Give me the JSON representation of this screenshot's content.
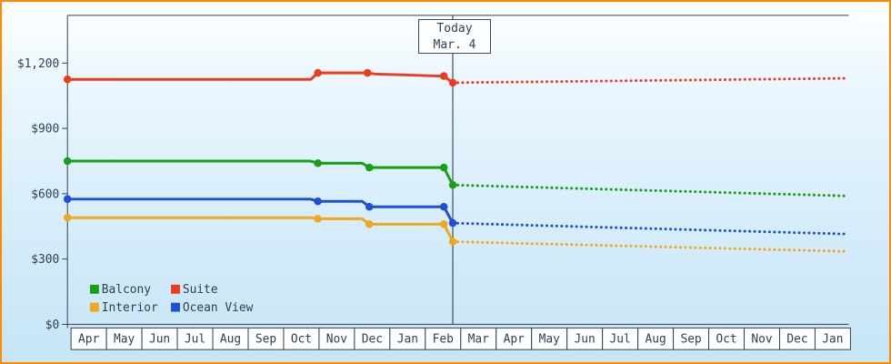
{
  "colors": {
    "border": "#ff8a00",
    "ink": "#2e4156",
    "today_line": "#3a4d63",
    "month_box_fill": "#ffffff",
    "bg_top": "#ffffff",
    "bg_bottom": "#c6e5f7"
  },
  "chart_data": {
    "type": "line",
    "title": "",
    "currency_symbol": "$",
    "grid": false,
    "legend_position": "bottom-left",
    "ylim": [
      0,
      1420
    ],
    "x_range_months": 22,
    "today": {
      "line1": "Today",
      "line2": "Mar. 4",
      "x_month": 10.85
    },
    "y_ticks": [
      {
        "value": 0,
        "label": "$0"
      },
      {
        "value": 300,
        "label": "$300"
      },
      {
        "value": 600,
        "label": "$600"
      },
      {
        "value": 900,
        "label": "$900"
      },
      {
        "value": 1200,
        "label": "$1,200"
      }
    ],
    "x_months": [
      "Apr",
      "May",
      "Jun",
      "Jul",
      "Aug",
      "Sep",
      "Oct",
      "Nov",
      "Dec",
      "Jan",
      "Feb",
      "Mar",
      "Apr",
      "May",
      "Jun",
      "Jul",
      "Aug",
      "Sep",
      "Oct",
      "Nov",
      "Dec",
      "Jan"
    ],
    "series": [
      {
        "name": "Interior",
        "color": "#f0a81f",
        "solid": [
          [
            0,
            490
          ],
          [
            6.85,
            490
          ],
          [
            7.05,
            485
          ],
          [
            8.3,
            485
          ],
          [
            8.5,
            460
          ],
          [
            10.6,
            460
          ],
          [
            10.85,
            380
          ]
        ],
        "markers": [
          [
            0,
            490
          ],
          [
            7.05,
            485
          ],
          [
            8.5,
            460
          ],
          [
            10.6,
            460
          ],
          [
            10.85,
            380
          ]
        ],
        "forecast": [
          [
            10.85,
            380
          ],
          [
            21.9,
            335
          ]
        ]
      },
      {
        "name": "Ocean View",
        "color": "#1e4fd8",
        "solid": [
          [
            0,
            575
          ],
          [
            6.85,
            575
          ],
          [
            7.05,
            565
          ],
          [
            8.3,
            565
          ],
          [
            8.5,
            540
          ],
          [
            10.6,
            540
          ],
          [
            10.85,
            465
          ]
        ],
        "markers": [
          [
            0,
            575
          ],
          [
            7.05,
            565
          ],
          [
            8.5,
            540
          ],
          [
            10.6,
            540
          ],
          [
            10.85,
            465
          ]
        ],
        "forecast": [
          [
            10.85,
            465
          ],
          [
            21.9,
            415
          ]
        ]
      },
      {
        "name": "Balcony",
        "color": "#15a015",
        "solid": [
          [
            0,
            750
          ],
          [
            6.85,
            750
          ],
          [
            7.05,
            740
          ],
          [
            8.3,
            740
          ],
          [
            8.5,
            720
          ],
          [
            10.6,
            720
          ],
          [
            10.85,
            640
          ]
        ],
        "markers": [
          [
            0,
            750
          ],
          [
            7.05,
            740
          ],
          [
            8.5,
            720
          ],
          [
            10.6,
            720
          ],
          [
            10.85,
            640
          ]
        ],
        "forecast": [
          [
            10.85,
            640
          ],
          [
            21.9,
            590
          ]
        ]
      },
      {
        "name": "Suite",
        "color": "#ee3b1e",
        "solid": [
          [
            0,
            1125
          ],
          [
            6.85,
            1125
          ],
          [
            7.05,
            1155
          ],
          [
            8.45,
            1155
          ],
          [
            8.65,
            1150
          ],
          [
            10.6,
            1140
          ],
          [
            10.85,
            1110
          ]
        ],
        "markers": [
          [
            0,
            1125
          ],
          [
            7.05,
            1155
          ],
          [
            8.45,
            1155
          ],
          [
            10.6,
            1140
          ],
          [
            10.85,
            1110
          ]
        ],
        "forecast": [
          [
            10.85,
            1110
          ],
          [
            21.9,
            1130
          ]
        ]
      }
    ],
    "legend": [
      {
        "label": "Balcony",
        "color": "#15a015"
      },
      {
        "label": "Suite",
        "color": "#ee3b1e"
      },
      {
        "label": "Interior",
        "color": "#f0a81f"
      },
      {
        "label": "Ocean View",
        "color": "#1e4fd8"
      }
    ]
  }
}
